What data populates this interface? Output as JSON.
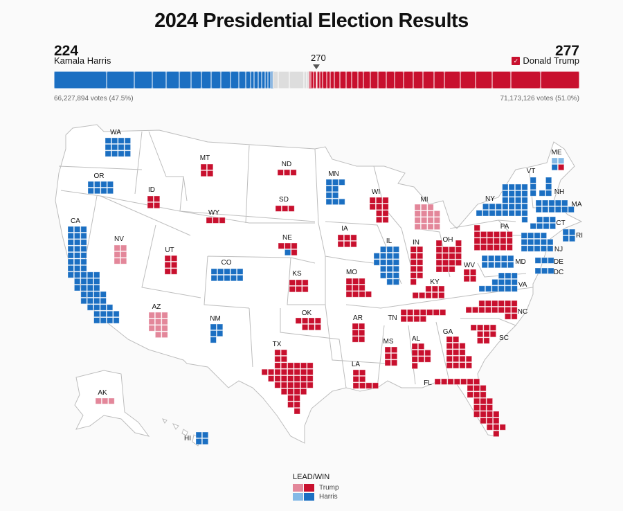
{
  "title": "2024 Presidential Election Results",
  "harris": {
    "ev": "224",
    "name": "Kamala Harris",
    "votes": "66,227,894 votes (47.5%)"
  },
  "trump": {
    "ev": "277",
    "name": "Donald Trump",
    "votes": "71,173,126 votes (51.0%)",
    "check": "✓"
  },
  "threshold": "270",
  "colors": {
    "R_win": "#c8102e",
    "R_lead": "#e3879a",
    "D_win": "#1b6fc2",
    "D_lead": "#84b9e6",
    "undecided": "#dddddd"
  },
  "legend": {
    "title": "LEAD/WIN",
    "trump": "Trump",
    "harris": "Harris"
  },
  "states": [
    {
      "abbr": "WA",
      "ev": 12,
      "party": "D",
      "status": "win"
    },
    {
      "abbr": "OR",
      "ev": 8,
      "party": "D",
      "status": "win"
    },
    {
      "abbr": "CA",
      "ev": 54,
      "party": "D",
      "status": "win"
    },
    {
      "abbr": "NV",
      "ev": 6,
      "party": "R",
      "status": "lead"
    },
    {
      "abbr": "ID",
      "ev": 4,
      "party": "R",
      "status": "win"
    },
    {
      "abbr": "MT",
      "ev": 4,
      "party": "R",
      "status": "win"
    },
    {
      "abbr": "WY",
      "ev": 3,
      "party": "R",
      "status": "win"
    },
    {
      "abbr": "UT",
      "ev": 6,
      "party": "R",
      "status": "win"
    },
    {
      "abbr": "AZ",
      "ev": 11,
      "party": "R",
      "status": "lead"
    },
    {
      "abbr": "CO",
      "ev": 10,
      "party": "D",
      "status": "win"
    },
    {
      "abbr": "NM",
      "ev": 5,
      "party": "D",
      "status": "win"
    },
    {
      "abbr": "ND",
      "ev": 3,
      "party": "R",
      "status": "win"
    },
    {
      "abbr": "SD",
      "ev": 3,
      "party": "R",
      "status": "win"
    },
    {
      "abbr": "NE",
      "ev": 5,
      "party": "R",
      "status": "win",
      "tiles": [
        {
          "party": "R",
          "status": "win",
          "count": 3
        },
        {
          "party": "D",
          "status": "win",
          "count": 1
        },
        {
          "party": "R",
          "status": "win",
          "count": 1
        }
      ]
    },
    {
      "abbr": "KS",
      "ev": 6,
      "party": "R",
      "status": "win"
    },
    {
      "abbr": "OK",
      "ev": 7,
      "party": "R",
      "status": "win"
    },
    {
      "abbr": "TX",
      "ev": 40,
      "party": "R",
      "status": "win"
    },
    {
      "abbr": "MN",
      "ev": 10,
      "party": "D",
      "status": "win"
    },
    {
      "abbr": "IA",
      "ev": 6,
      "party": "R",
      "status": "win"
    },
    {
      "abbr": "MO",
      "ev": 10,
      "party": "R",
      "status": "win"
    },
    {
      "abbr": "AR",
      "ev": 6,
      "party": "R",
      "status": "win"
    },
    {
      "abbr": "LA",
      "ev": 8,
      "party": "R",
      "status": "win"
    },
    {
      "abbr": "WI",
      "ev": 10,
      "party": "R",
      "status": "win"
    },
    {
      "abbr": "IL",
      "ev": 19,
      "party": "D",
      "status": "win"
    },
    {
      "abbr": "MI",
      "ev": 15,
      "party": "R",
      "status": "lead"
    },
    {
      "abbr": "IN",
      "ev": 11,
      "party": "R",
      "status": "win"
    },
    {
      "abbr": "OH",
      "ev": 17,
      "party": "R",
      "status": "win"
    },
    {
      "abbr": "KY",
      "ev": 8,
      "party": "R",
      "status": "win"
    },
    {
      "abbr": "TN",
      "ev": 11,
      "party": "R",
      "status": "win"
    },
    {
      "abbr": "MS",
      "ev": 6,
      "party": "R",
      "status": "win"
    },
    {
      "abbr": "AL",
      "ev": 9,
      "party": "R",
      "status": "win"
    },
    {
      "abbr": "GA",
      "ev": 16,
      "party": "R",
      "status": "win"
    },
    {
      "abbr": "FL",
      "ev": 30,
      "party": "R",
      "status": "win"
    },
    {
      "abbr": "SC",
      "ev": 9,
      "party": "R",
      "status": "win"
    },
    {
      "abbr": "NC",
      "ev": 16,
      "party": "R",
      "status": "win"
    },
    {
      "abbr": "VA",
      "ev": 13,
      "party": "D",
      "status": "win"
    },
    {
      "abbr": "WV",
      "ev": 4,
      "party": "R",
      "status": "win"
    },
    {
      "abbr": "PA",
      "ev": 19,
      "party": "R",
      "status": "win"
    },
    {
      "abbr": "NY",
      "ev": 28,
      "party": "D",
      "status": "win"
    },
    {
      "abbr": "VT",
      "ev": 3,
      "party": "D",
      "status": "win"
    },
    {
      "abbr": "NH",
      "ev": 4,
      "party": "D",
      "status": "win"
    },
    {
      "abbr": "ME",
      "ev": 4,
      "party": "D",
      "status": "win",
      "tiles": [
        {
          "party": "D",
          "status": "lead",
          "count": 2
        },
        {
          "party": "D",
          "status": "win",
          "count": 1
        },
        {
          "party": "R",
          "status": "win",
          "count": 1
        }
      ]
    },
    {
      "abbr": "MA",
      "ev": 11,
      "party": "D",
      "status": "win"
    },
    {
      "abbr": "CT",
      "ev": 7,
      "party": "D",
      "status": "win"
    },
    {
      "abbr": "RI",
      "ev": 4,
      "party": "D",
      "status": "win"
    },
    {
      "abbr": "NJ",
      "ev": 14,
      "party": "D",
      "status": "win"
    },
    {
      "abbr": "DE",
      "ev": 3,
      "party": "D",
      "status": "win"
    },
    {
      "abbr": "MD",
      "ev": 10,
      "party": "D",
      "status": "win"
    },
    {
      "abbr": "DC",
      "ev": 3,
      "party": "D",
      "status": "win"
    },
    {
      "abbr": "AK",
      "ev": 3,
      "party": "R",
      "status": "lead"
    },
    {
      "abbr": "HI",
      "ev": 4,
      "party": "D",
      "status": "win"
    }
  ]
}
